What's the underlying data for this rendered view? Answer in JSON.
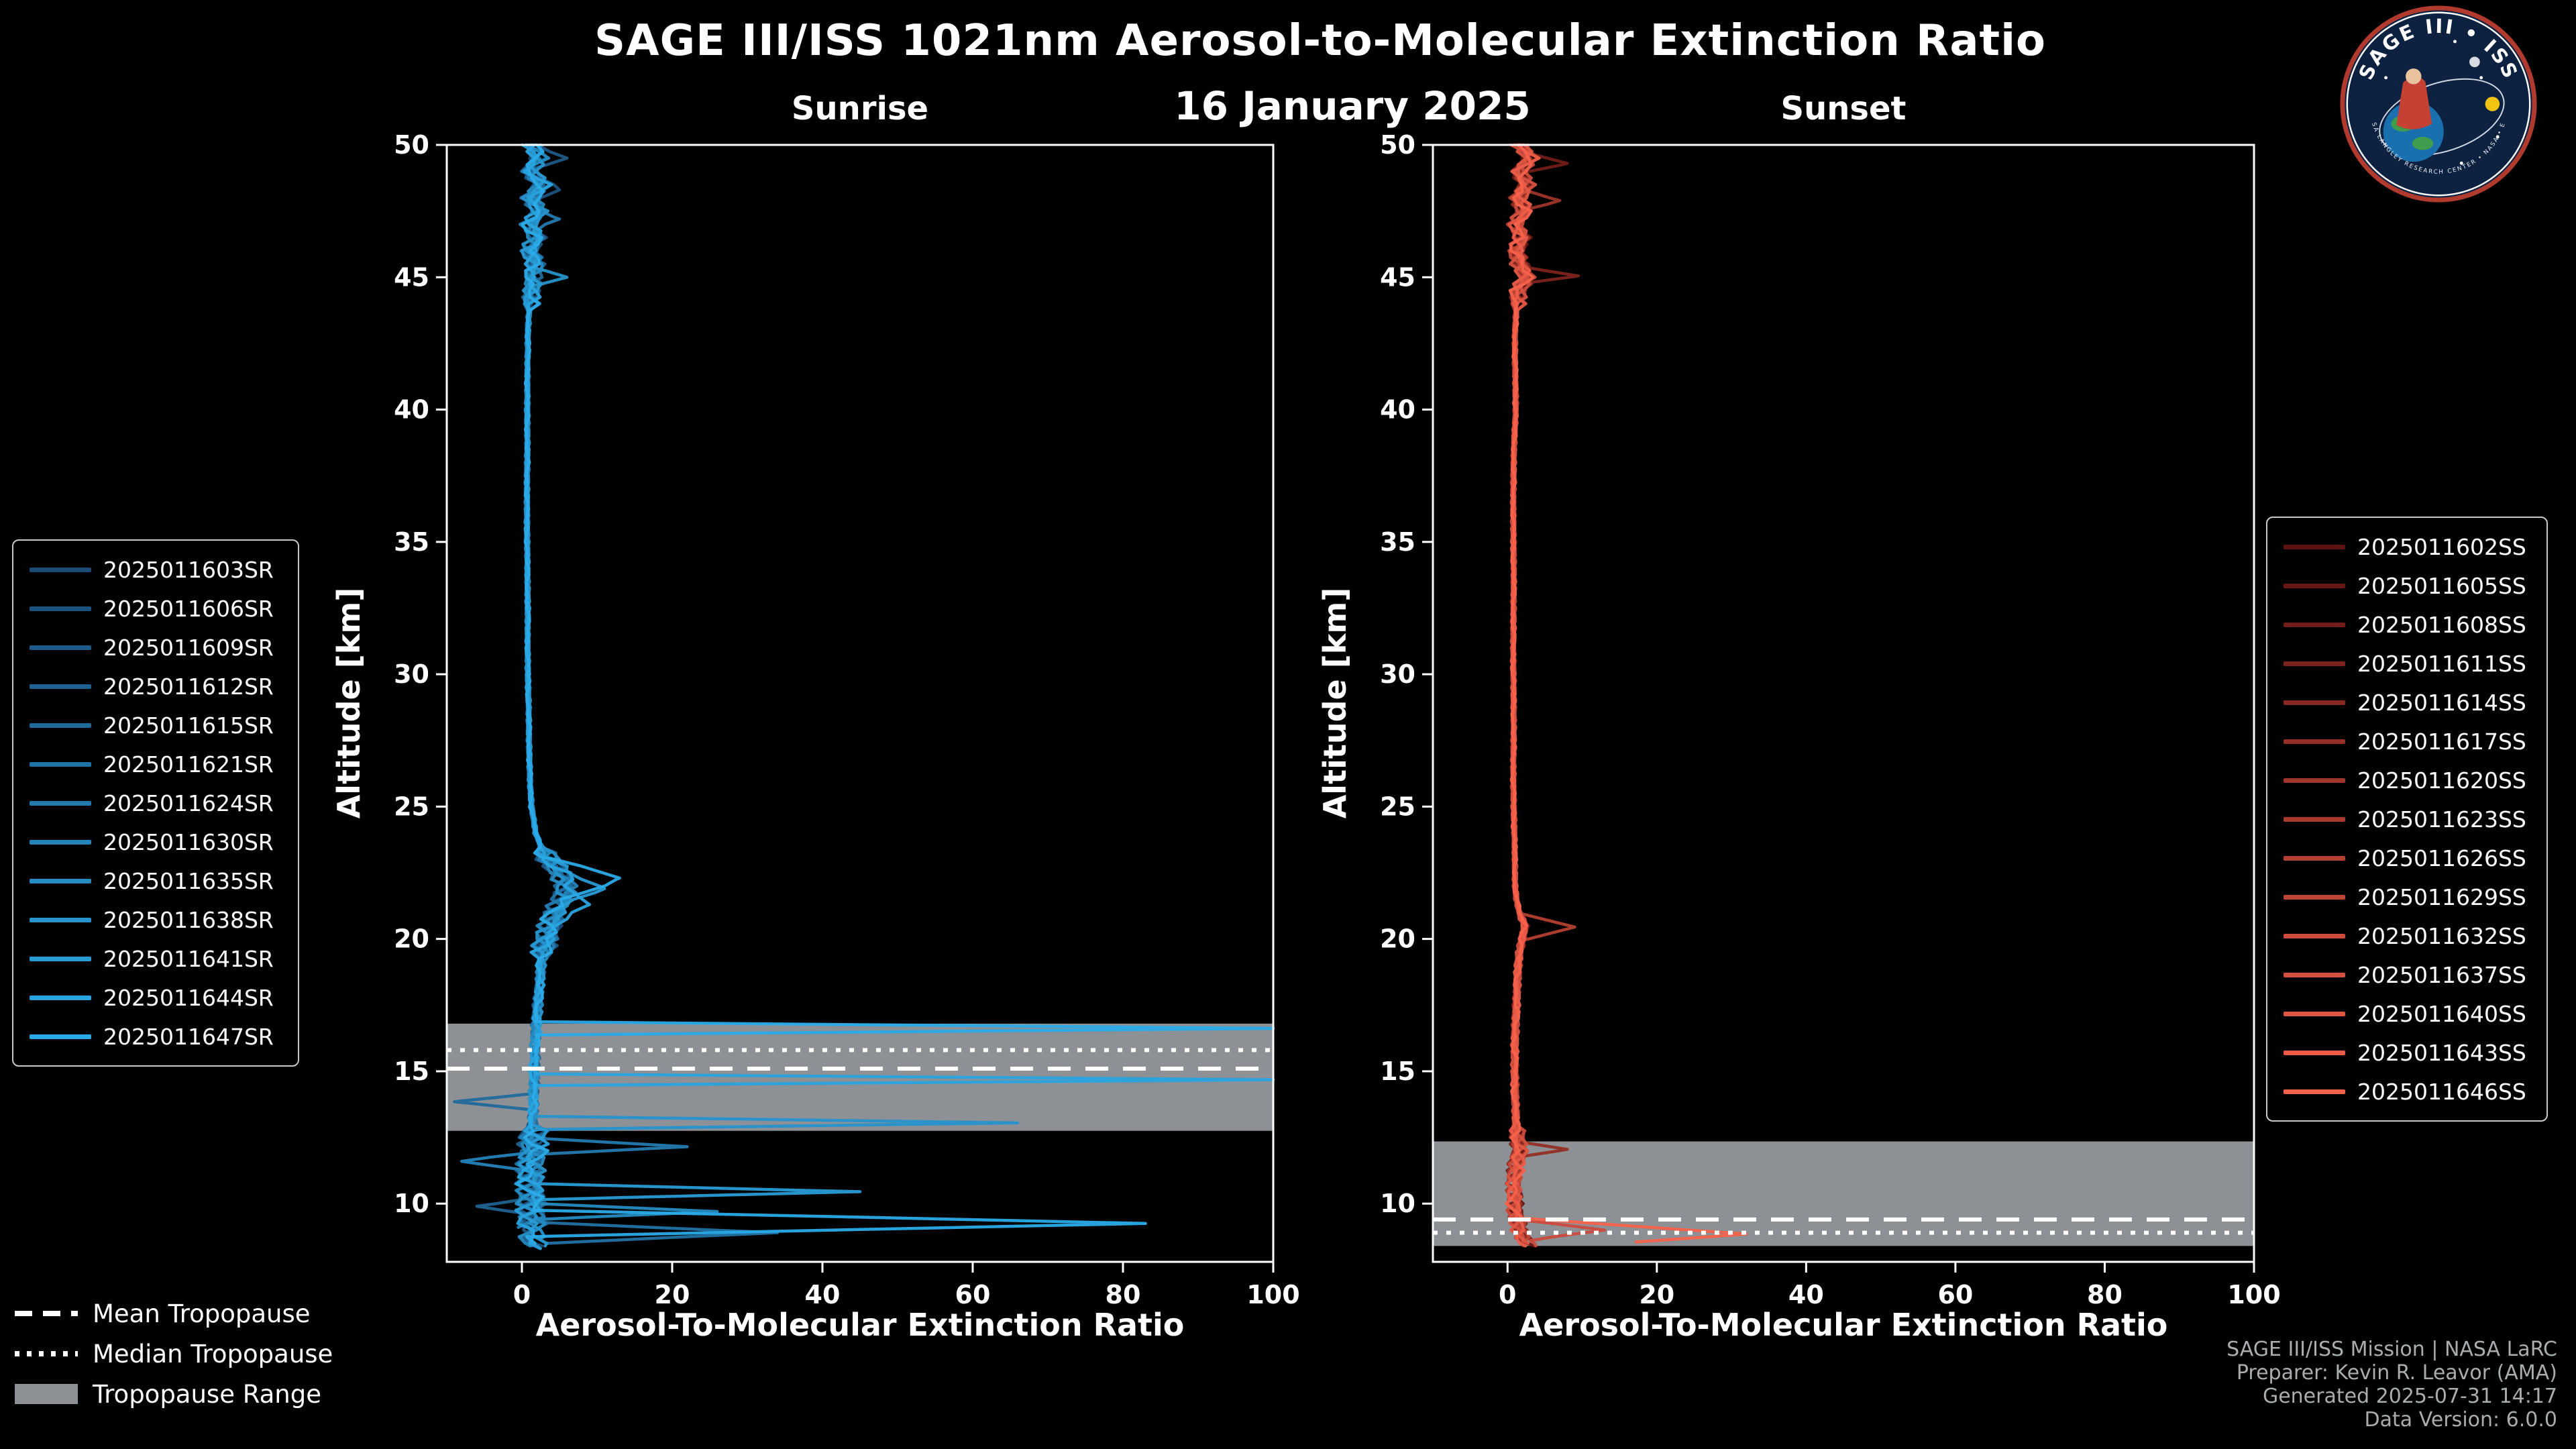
{
  "header": {
    "title": "SAGE III/ISS 1021nm Aerosol-to-Molecular Extinction Ratio",
    "date": "16 January 2025"
  },
  "axes": {
    "x_label": "Aerosol-To-Molecular Extinction Ratio",
    "y_label": "Altitude [km]"
  },
  "tropopause_legend": {
    "mean": "Mean Tropopause",
    "median": "Median Tropopause",
    "range": "Tropopause Range"
  },
  "footer": {
    "line1": "SAGE III/ISS Mission | NASA LaRC",
    "line2": "Preparer: Kevin R. Leavor (AMA)",
    "line3": "Generated 2025-07-31 14:17",
    "line4": "Data Version: 6.0.0"
  },
  "logo": {
    "title": "SAGE III • ISS",
    "ring_text": "NASA LANGLEY RESEARCH CENTER • NASA • ESA"
  },
  "style": {
    "background": "#000000",
    "tropopause_band": "#8d9195",
    "tropopause_line": "#ffffff"
  },
  "chart_data": [
    {
      "type": "line",
      "title": "Sunrise",
      "xlabel": "Aerosol-To-Molecular Extinction Ratio",
      "ylabel": "Altitude [km]",
      "xlim": [
        -10,
        100
      ],
      "ylim": [
        7.8,
        50
      ],
      "xticks": [
        0,
        20,
        40,
        60,
        80,
        100
      ],
      "yticks": [
        10,
        15,
        20,
        25,
        30,
        35,
        40,
        45,
        50
      ],
      "tropopause": {
        "mean": 15.1,
        "median": 15.8,
        "range": [
          12.75,
          16.8
        ]
      },
      "base_profile": [
        [
          50,
          1.2
        ],
        [
          49.5,
          2.2
        ],
        [
          49,
          1.0
        ],
        [
          48.5,
          2.6
        ],
        [
          48,
          1.2
        ],
        [
          47.5,
          2.4
        ],
        [
          47,
          1.1
        ],
        [
          46.5,
          2.0
        ],
        [
          46,
          1.0
        ],
        [
          45.5,
          1.8
        ],
        [
          45,
          1.4
        ],
        [
          44,
          1.0
        ],
        [
          43,
          0.8
        ],
        [
          42,
          0.8
        ],
        [
          40,
          0.7
        ],
        [
          38,
          0.7
        ],
        [
          36,
          0.7
        ],
        [
          34,
          0.7
        ],
        [
          32,
          0.8
        ],
        [
          30,
          0.8
        ],
        [
          28,
          0.9
        ],
        [
          26,
          1.1
        ],
        [
          25,
          1.3
        ],
        [
          24,
          1.8
        ],
        [
          23.5,
          2.5
        ],
        [
          23,
          3.5
        ],
        [
          22.5,
          5.0
        ],
        [
          22,
          6.0
        ],
        [
          21.5,
          5.5
        ],
        [
          21,
          4.5
        ],
        [
          20.5,
          3.8
        ],
        [
          20,
          3.2
        ],
        [
          19.5,
          2.8
        ],
        [
          19,
          2.5
        ],
        [
          18,
          2.2
        ],
        [
          17,
          2.0
        ],
        [
          16.5,
          1.9
        ],
        [
          16,
          1.8
        ],
        [
          15.5,
          1.8
        ],
        [
          15,
          1.7
        ],
        [
          14.5,
          1.6
        ],
        [
          14,
          1.5
        ],
        [
          13,
          1.4
        ],
        [
          12,
          1.4
        ],
        [
          11,
          1.3
        ],
        [
          10,
          1.3
        ],
        [
          9,
          1.3
        ],
        [
          8.3,
          1.3
        ]
      ],
      "jitter": [
        {
          "range": [
            44,
            50.5
          ],
          "amp": 1.4
        },
        {
          "range": [
            23.5,
            44
          ],
          "amp": 0.3
        },
        {
          "range": [
            19.5,
            23.5
          ],
          "amp": 1.8
        },
        {
          "range": [
            13,
            19.5
          ],
          "amp": 0.7
        },
        {
          "range": [
            7.8,
            13
          ],
          "amp": 2.2
        }
      ],
      "series": [
        {
          "name": "2025011603SR",
          "color": "#1b4a74",
          "min_alt": 9.4
        },
        {
          "name": "2025011606SR",
          "color": "#1c527e",
          "min_alt": 8.4
        },
        {
          "name": "2025011609SR",
          "color": "#1e5a87",
          "min_alt": 8.8
        },
        {
          "name": "2025011612SR",
          "color": "#1f6291",
          "min_alt": 8.4
        },
        {
          "name": "2025011615SR",
          "color": "#206a9b",
          "min_alt": 9.8
        },
        {
          "name": "2025011621SR",
          "color": "#2172a4",
          "min_alt": 8.5
        },
        {
          "name": "2025011624SR",
          "color": "#237aae",
          "min_alt": 8.4
        },
        {
          "name": "2025011630SR",
          "color": "#2483b8",
          "min_alt": 9.1
        },
        {
          "name": "2025011635SR",
          "color": "#258bc1",
          "min_alt": 8.4
        },
        {
          "name": "2025011638SR",
          "color": "#2693cb",
          "min_alt": 8.7
        },
        {
          "name": "2025011641SR",
          "color": "#289bd5",
          "min_alt": 8.4
        },
        {
          "name": "2025011644SR",
          "color": "#29a3de",
          "min_alt": 8.3
        },
        {
          "name": "2025011647SR",
          "color": "#2aabe8",
          "min_alt": 8.5
        }
      ],
      "spikes": [
        {
          "series": 1,
          "alt": 48.3,
          "peak": 5,
          "width": 0.4
        },
        {
          "series": 2,
          "alt": 49.5,
          "peak": 6,
          "width": 0.4
        },
        {
          "series": 6,
          "alt": 47.2,
          "peak": 5,
          "width": 0.4
        },
        {
          "series": 9,
          "alt": 45.0,
          "peak": 6,
          "width": 0.35
        },
        {
          "series": 12,
          "alt": 22.3,
          "peak": 13,
          "width": 0.8
        },
        {
          "series": 10,
          "alt": 21.9,
          "peak": 11,
          "width": 0.7
        },
        {
          "series": 11,
          "alt": 21.3,
          "peak": 9,
          "width": 0.7
        },
        {
          "series": 12,
          "alt": 16.62,
          "peak": 100,
          "width": 0.25
        },
        {
          "series": 11,
          "alt": 14.68,
          "peak": 100,
          "width": 0.22
        },
        {
          "series": 4,
          "alt": 13.85,
          "peak": -9,
          "width": 0.3
        },
        {
          "series": 9,
          "alt": 13.05,
          "peak": 66,
          "width": 0.25
        },
        {
          "series": 6,
          "alt": 12.15,
          "peak": 22,
          "width": 0.3
        },
        {
          "series": 7,
          "alt": 11.6,
          "peak": -8,
          "width": 0.4
        },
        {
          "series": 10,
          "alt": 10.45,
          "peak": 45,
          "width": 0.3
        },
        {
          "series": 3,
          "alt": 9.9,
          "peak": -6,
          "width": 0.3
        },
        {
          "series": 8,
          "alt": 9.7,
          "peak": 26,
          "width": 0.3
        },
        {
          "series": 12,
          "alt": 9.25,
          "peak": 83,
          "width": 0.5
        },
        {
          "series": 5,
          "alt": 8.9,
          "peak": 34,
          "width": 0.4
        }
      ]
    },
    {
      "type": "line",
      "title": "Sunset",
      "xlabel": "Aerosol-To-Molecular Extinction Ratio",
      "ylabel": "Altitude [km]",
      "xlim": [
        -10,
        100
      ],
      "ylim": [
        7.8,
        50
      ],
      "xticks": [
        0,
        20,
        40,
        60,
        80,
        100
      ],
      "yticks": [
        10,
        15,
        20,
        25,
        30,
        35,
        40,
        45,
        50
      ],
      "tropopause": {
        "mean": 9.4,
        "median": 8.9,
        "range": [
          8.4,
          12.35
        ]
      },
      "base_profile": [
        [
          50,
          1.5
        ],
        [
          49.5,
          3.0
        ],
        [
          49,
          1.5
        ],
        [
          48.5,
          2.5
        ],
        [
          48,
          1.5
        ],
        [
          47.5,
          2.2
        ],
        [
          47,
          1.2
        ],
        [
          46.5,
          2.0
        ],
        [
          46,
          1.2
        ],
        [
          45.5,
          1.6
        ],
        [
          45,
          2.5
        ],
        [
          44.5,
          1.4
        ],
        [
          44,
          1.2
        ],
        [
          43,
          1.0
        ],
        [
          42,
          1.0
        ],
        [
          41,
          1.1
        ],
        [
          40,
          1.1
        ],
        [
          39,
          0.9
        ],
        [
          38,
          0.8
        ],
        [
          36,
          0.8
        ],
        [
          34,
          0.8
        ],
        [
          32,
          0.8
        ],
        [
          30,
          0.8
        ],
        [
          28,
          0.8
        ],
        [
          26,
          0.8
        ],
        [
          24,
          0.9
        ],
        [
          22,
          1.0
        ],
        [
          21.5,
          1.2
        ],
        [
          21,
          1.6
        ],
        [
          20.5,
          2.4
        ],
        [
          20,
          2.0
        ],
        [
          19.5,
          1.6
        ],
        [
          19,
          1.4
        ],
        [
          18,
          1.2
        ],
        [
          17,
          1.1
        ],
        [
          16,
          1.0
        ],
        [
          15,
          1.0
        ],
        [
          14,
          1.0
        ],
        [
          13,
          1.1
        ],
        [
          12.5,
          1.3
        ],
        [
          12,
          1.6
        ],
        [
          11.5,
          1.2
        ],
        [
          11,
          1.0
        ],
        [
          10.5,
          1.0
        ],
        [
          10,
          1.0
        ],
        [
          9.5,
          1.1
        ],
        [
          9,
          1.6
        ],
        [
          8.6,
          2.2
        ],
        [
          8.4,
          2.8
        ]
      ],
      "jitter": [
        {
          "range": [
            44,
            50.5
          ],
          "amp": 1.3
        },
        {
          "range": [
            21,
            44
          ],
          "amp": 0.3
        },
        {
          "range": [
            13,
            21
          ],
          "amp": 0.5
        },
        {
          "range": [
            7.8,
            13
          ],
          "amp": 1.2
        }
      ],
      "series": [
        {
          "name": "2025011602SS",
          "color": "#5c1210",
          "min_alt": 8.6
        },
        {
          "name": "2025011605SS",
          "color": "#671814",
          "min_alt": 8.4
        },
        {
          "name": "2025011608SS",
          "color": "#721d19",
          "min_alt": 8.8
        },
        {
          "name": "2025011611SS",
          "color": "#7d231d",
          "min_alt": 8.5
        },
        {
          "name": "2025011614SS",
          "color": "#882921",
          "min_alt": 8.4
        },
        {
          "name": "2025011617SS",
          "color": "#932f25",
          "min_alt": 8.6
        },
        {
          "name": "2025011620SS",
          "color": "#9e342a",
          "min_alt": 8.5
        },
        {
          "name": "2025011623SS",
          "color": "#a93a2e",
          "min_alt": 8.4
        },
        {
          "name": "2025011626SS",
          "color": "#b44032",
          "min_alt": 8.7
        },
        {
          "name": "2025011629SS",
          "color": "#bf4637",
          "min_alt": 8.5
        },
        {
          "name": "2025011632SS",
          "color": "#ca4b3b",
          "min_alt": 8.4
        },
        {
          "name": "2025011637SS",
          "color": "#d5513f",
          "min_alt": 8.6
        },
        {
          "name": "2025011640SS",
          "color": "#e05743",
          "min_alt": 8.5
        },
        {
          "name": "2025011643SS",
          "color": "#eb5c48",
          "min_alt": 8.4
        },
        {
          "name": "2025011646SS",
          "color": "#f6624c",
          "min_alt": 8.55
        }
      ],
      "spikes": [
        {
          "series": 2,
          "alt": 49.3,
          "peak": 8,
          "width": 0.4
        },
        {
          "series": 6,
          "alt": 47.9,
          "peak": 7,
          "width": 0.4
        },
        {
          "series": 3,
          "alt": 45.05,
          "peak": 9.5,
          "width": 0.3
        },
        {
          "series": 8,
          "alt": 20.45,
          "peak": 9,
          "width": 0.5
        },
        {
          "series": 5,
          "alt": 12.05,
          "peak": 8,
          "width": 0.3
        },
        {
          "series": 10,
          "alt": 9.0,
          "peak": 13,
          "width": 0.4
        },
        {
          "series": 14,
          "alt": 8.85,
          "peak": 32,
          "width": 0.6
        }
      ]
    }
  ]
}
